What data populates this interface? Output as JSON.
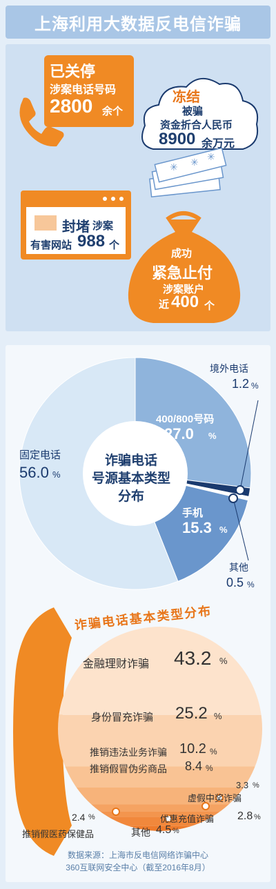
{
  "title": "上海利用大数据反电信诈骗",
  "stats": {
    "phones": {
      "l1": "已关停",
      "l2": "涉案电话号码",
      "num": "2800",
      "unit": "余个"
    },
    "freeze": {
      "l1": "冻结",
      "l2": "被骗",
      "l3": "资金折合人民币",
      "num": "8900",
      "unit": "余万元"
    },
    "sites": {
      "l1a": "封堵",
      "l1b": "涉案",
      "l2a": "有害网站",
      "num": "988",
      "unit": "个"
    },
    "accounts": {
      "l1": "成功",
      "l2": "紧急止付",
      "l3": "涉案账户",
      "num_prefix": "近",
      "num": "400",
      "unit": "个"
    }
  },
  "colors": {
    "orange": "#f08a24",
    "light_blue": "#cfe0f2",
    "mid_blue": "#a9c6e6",
    "dark_blue": "#1a3a6e",
    "pie_light": "#d8e8f6",
    "pie_mid": "#8fb4dc",
    "pie_dark": "#6a96cc"
  },
  "icons": [
    "phone-handset-icon",
    "cloud-icon",
    "money-stack-icon",
    "browser-window-icon",
    "money-bag-icon"
  ],
  "chart_data": [
    {
      "type": "pie",
      "title": "诈骗电话号源基本类型分布",
      "title_lines": [
        "诈骗电话",
        "号源基本类型",
        "分布"
      ],
      "slices": [
        {
          "name": "400/800号码",
          "value": 27.0,
          "display": "27.0",
          "color": "#8fb4dc"
        },
        {
          "name": "境外电话",
          "value": 1.2,
          "display": "1.2",
          "color": "#1a3a6e"
        },
        {
          "name": "其他",
          "value": 0.5,
          "display": "0.5",
          "color": "#ffffff"
        },
        {
          "name": "手机",
          "value": 15.3,
          "display": "15.3",
          "color": "#6a96cc"
        },
        {
          "name": "固定电话",
          "value": 56.0,
          "display": "56.0",
          "color": "#d8e8f6"
        }
      ],
      "unit": "%"
    },
    {
      "type": "bar",
      "title": "诈骗电话基本类型分布",
      "unit": "%",
      "categories": [
        "金融理财诈骗",
        "身份冒充诈骗",
        "推销违法业务诈骗",
        "推销假冒伪劣商品",
        "虚假中奖诈骗",
        "优惠充值诈骗",
        "其他",
        "推销假医药保健品"
      ],
      "values": [
        43.2,
        25.2,
        10.2,
        8.4,
        3.3,
        2.8,
        4.5,
        2.4
      ],
      "display": [
        "43.2",
        "25.2",
        "10.2",
        "8.4",
        "3.3",
        "2.8",
        "4.5",
        "2.4"
      ]
    }
  ],
  "source": {
    "l1": "数据来源：上海市反电信网络诈骗中心",
    "l2": "360互联网安全中心（截至2016年8月）"
  }
}
